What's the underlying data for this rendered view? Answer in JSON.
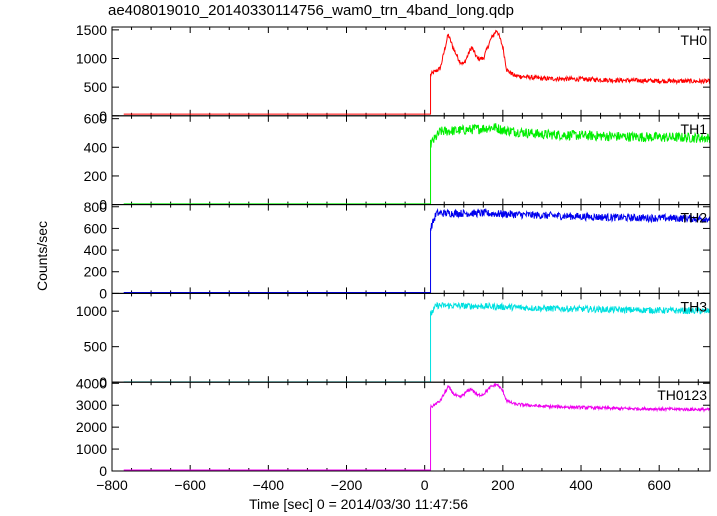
{
  "title": "ae408019010_20140330114756_wam0_trn_4band_long.qdp",
  "ylabel": "Counts/sec",
  "xlabel": "Time [sec] 0 = 2014/03/30 11:47:56",
  "chart_data": {
    "type": "line",
    "title": "ae408019010_20140330114756_wam0_trn_4band_long.qdp",
    "xlabel": "Time [sec] 0 = 2014/03/30 11:47:56",
    "ylabel": "Counts/sec",
    "xlim": [
      -800,
      730
    ],
    "xticks": [
      -800,
      -600,
      -400,
      -200,
      0,
      200,
      400,
      600
    ],
    "trigger_time": 15,
    "panels": [
      {
        "name": "TH0",
        "color": "#ff0000",
        "ylim": [
          0,
          1550
        ],
        "yticks": [
          0,
          500,
          1000,
          1500
        ],
        "pre_level": 30,
        "noise": 40,
        "profile": [
          [
            15,
            720
          ],
          [
            40,
            830
          ],
          [
            60,
            1420
          ],
          [
            75,
            1150
          ],
          [
            90,
            950
          ],
          [
            100,
            900
          ],
          [
            110,
            1050
          ],
          [
            120,
            1200
          ],
          [
            135,
            1000
          ],
          [
            150,
            1000
          ],
          [
            170,
            1350
          ],
          [
            185,
            1500
          ],
          [
            200,
            1200
          ],
          [
            210,
            800
          ],
          [
            230,
            700
          ],
          [
            300,
            650
          ],
          [
            400,
            640
          ],
          [
            500,
            620
          ],
          [
            600,
            610
          ],
          [
            730,
            600
          ]
        ]
      },
      {
        "name": "TH1",
        "color": "#00ee00",
        "ylim": [
          0,
          620
        ],
        "yticks": [
          0,
          200,
          400,
          600
        ],
        "pre_level": 5,
        "noise": 35,
        "profile": [
          [
            15,
            420
          ],
          [
            40,
            510
          ],
          [
            100,
            520
          ],
          [
            180,
            540
          ],
          [
            200,
            520
          ],
          [
            300,
            490
          ],
          [
            500,
            475
          ],
          [
            730,
            465
          ]
        ]
      },
      {
        "name": "TH2",
        "color": "#0000ee",
        "ylim": [
          0,
          820
        ],
        "yticks": [
          0,
          200,
          400,
          600,
          800
        ],
        "pre_level": 8,
        "noise": 35,
        "profile": [
          [
            15,
            600
          ],
          [
            30,
            740
          ],
          [
            150,
            740
          ],
          [
            300,
            720
          ],
          [
            500,
            700
          ],
          [
            730,
            690
          ]
        ]
      },
      {
        "name": "TH3",
        "color": "#00e0e0",
        "ylim": [
          0,
          1250
        ],
        "yticks": [
          0,
          500,
          1000
        ],
        "pre_level": 5,
        "noise": 45,
        "profile": [
          [
            15,
            950
          ],
          [
            30,
            1080
          ],
          [
            150,
            1070
          ],
          [
            300,
            1040
          ],
          [
            500,
            1020
          ],
          [
            730,
            1000
          ]
        ]
      },
      {
        "name": "TH0123",
        "color": "#ee00ee",
        "ylim": [
          0,
          4050
        ],
        "yticks": [
          0,
          1000,
          2000,
          3000,
          4000
        ],
        "pre_level": 45,
        "noise": 70,
        "profile": [
          [
            15,
            2900
          ],
          [
            40,
            3200
          ],
          [
            60,
            3850
          ],
          [
            75,
            3500
          ],
          [
            90,
            3350
          ],
          [
            110,
            3650
          ],
          [
            120,
            3750
          ],
          [
            135,
            3450
          ],
          [
            150,
            3500
          ],
          [
            170,
            3850
          ],
          [
            185,
            3950
          ],
          [
            200,
            3650
          ],
          [
            210,
            3200
          ],
          [
            230,
            3050
          ],
          [
            300,
            2950
          ],
          [
            400,
            2900
          ],
          [
            500,
            2850
          ],
          [
            730,
            2800
          ]
        ]
      }
    ]
  }
}
